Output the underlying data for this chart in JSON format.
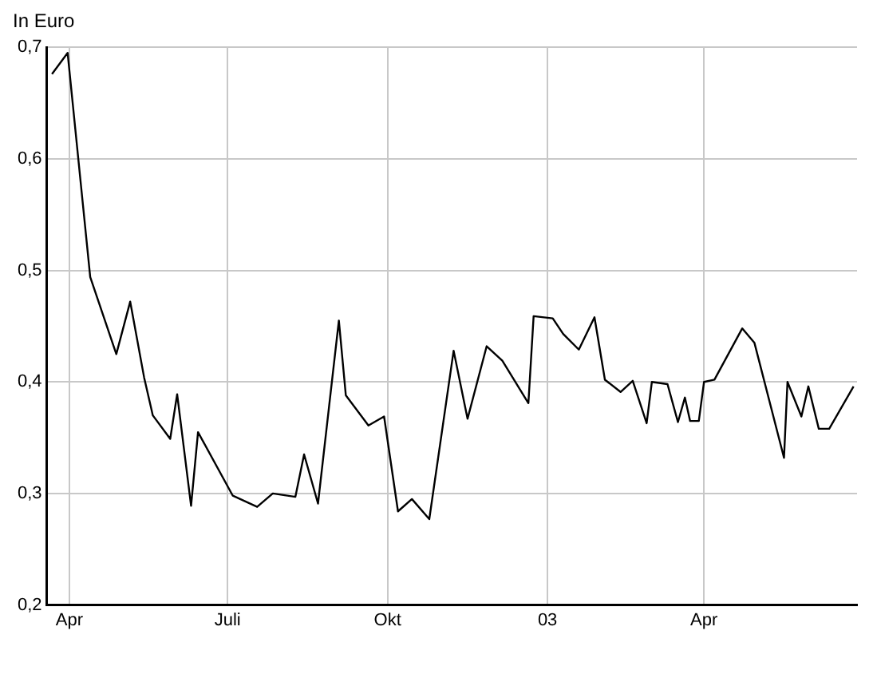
{
  "chart_data": {
    "type": "line",
    "ylabel": "In Euro",
    "x": [
      "2002-03-22",
      "2002-03-31",
      "2002-04-13",
      "2002-04-28",
      "2002-05-06",
      "2002-05-14",
      "2002-05-19",
      "2002-05-29",
      "2002-06-02",
      "2002-06-10",
      "2002-06-14",
      "2002-07-04",
      "2002-07-18",
      "2002-07-27",
      "2002-08-09",
      "2002-08-14",
      "2002-08-22",
      "2002-09-03",
      "2002-09-07",
      "2002-09-20",
      "2002-09-29",
      "2002-10-07",
      "2002-10-15",
      "2002-10-25",
      "2002-11-08",
      "2002-11-16",
      "2002-11-27",
      "2002-12-06",
      "2002-12-21",
      "2002-12-24",
      "2003-01-04",
      "2003-01-10",
      "2003-01-19",
      "2003-01-28",
      "2003-02-03",
      "2003-02-12",
      "2003-02-19",
      "2003-02-27",
      "2003-03-02",
      "2003-03-11",
      "2003-03-17",
      "2003-03-21",
      "2003-03-24",
      "2003-03-29",
      "2003-04-01",
      "2003-04-07",
      "2003-04-23",
      "2003-04-30",
      "2003-05-17",
      "2003-05-19",
      "2003-05-27",
      "2003-05-31",
      "2003-06-06",
      "2003-06-12",
      "2003-06-26"
    ],
    "series": [
      {
        "color": "#000000",
        "values": [
          0.676,
          0.695,
          0.494,
          0.425,
          0.472,
          0.404,
          0.37,
          0.349,
          0.389,
          0.289,
          0.355,
          0.298,
          0.288,
          0.3,
          0.297,
          0.335,
          0.291,
          0.455,
          0.388,
          0.361,
          0.369,
          0.284,
          0.295,
          0.277,
          0.428,
          0.367,
          0.432,
          0.419,
          0.381,
          0.459,
          0.457,
          0.443,
          0.429,
          0.458,
          0.402,
          0.391,
          0.401,
          0.363,
          0.4,
          0.398,
          0.364,
          0.386,
          0.365,
          0.365,
          0.4,
          0.402,
          0.448,
          0.435,
          0.332,
          0.4,
          0.369,
          0.396,
          0.358,
          0.358,
          0.396
        ]
      }
    ],
    "xlim": [
      "2002-03-19",
      "2003-06-28"
    ],
    "xticks": [
      {
        "value": "2002-04-01",
        "label": "Apr"
      },
      {
        "value": "2002-07-01",
        "label": "Juli"
      },
      {
        "value": "2002-10-01",
        "label": "Okt"
      },
      {
        "value": "2003-01-01",
        "label": "03"
      },
      {
        "value": "2003-04-01",
        "label": "Apr"
      }
    ],
    "ylim": [
      0.2,
      0.7
    ],
    "yticks": [
      {
        "value": 0.2,
        "label": "0,2"
      },
      {
        "value": 0.3,
        "label": "0,3"
      },
      {
        "value": 0.4,
        "label": "0,4"
      },
      {
        "value": 0.5,
        "label": "0,5"
      },
      {
        "value": 0.6,
        "label": "0,6"
      },
      {
        "value": 0.7,
        "label": "0,7"
      }
    ],
    "grid": true,
    "marker": "none",
    "line_style": "solid"
  }
}
